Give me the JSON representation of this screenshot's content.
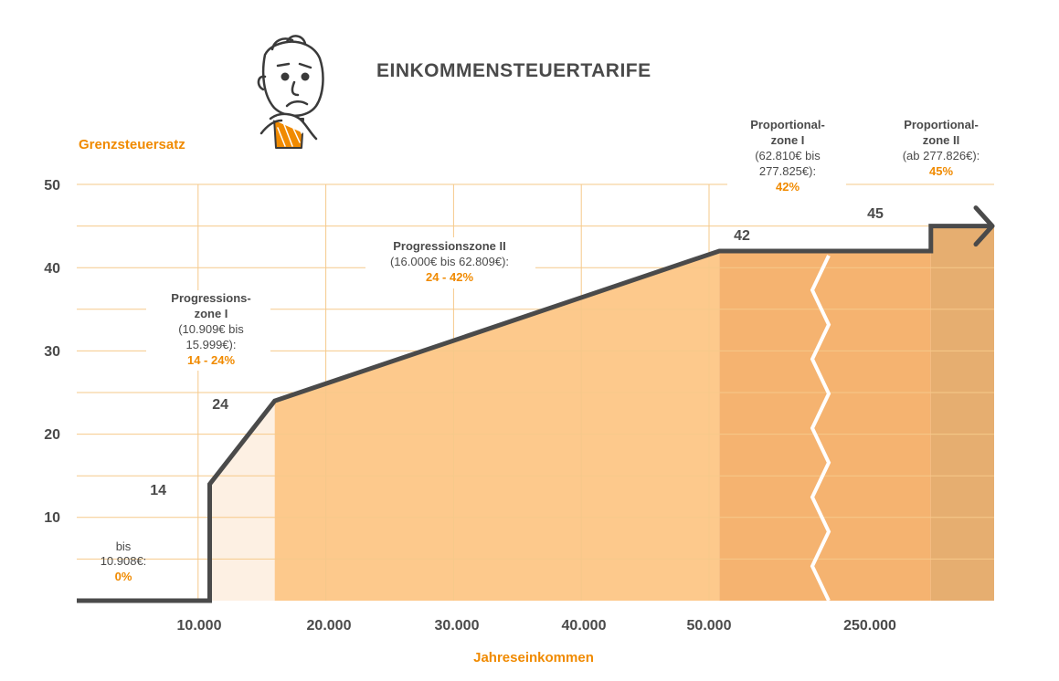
{
  "title": "EINKOMMENSTEUERTARIFE",
  "colors": {
    "accent": "#f08a00",
    "line": "#4a4a4a",
    "grid": "#f6c98a",
    "text": "#4a4a4a",
    "fill_free": "#fdf0e3",
    "fill_progression": "#fdc98c",
    "fill_prop1": "#f5b370",
    "fill_prop2": "#e6ae70",
    "break": "#ffffff"
  },
  "chart_data": {
    "type": "area",
    "title": "EINKOMMENSTEUERTARIFE",
    "ylabel": "Grenzsteuersatz",
    "xlabel": "Jahreseinkommen",
    "ylim": [
      0,
      50
    ],
    "yticks": [
      10,
      20,
      30,
      40,
      50
    ],
    "grid": true,
    "x_tick_labels": [
      "10.000",
      "20.000",
      "30.000",
      "40.000",
      "50.000",
      "250.000"
    ],
    "axis_break": "between 50.000 and 250.000",
    "step_points": [
      {
        "x": 10908,
        "y": 0
      },
      {
        "x": 10909,
        "y": 14
      },
      {
        "x": 16000,
        "y": 24
      },
      {
        "x": 62809,
        "y": 42
      },
      {
        "x": 277825,
        "y": 42
      },
      {
        "x": 277826,
        "y": 45
      }
    ],
    "point_labels": [
      "14",
      "24",
      "42",
      "45"
    ],
    "zones": [
      {
        "lines": [
          "bis",
          "10.908€:"
        ],
        "rate": "0%"
      },
      {
        "heading": [
          "Progressions-",
          "zone I"
        ],
        "lines": [
          "(10.909€ bis",
          "15.999€):"
        ],
        "rate": "14 - 24%"
      },
      {
        "heading": [
          "Progressionszone II"
        ],
        "lines": [
          "(16.000€ bis 62.809€):"
        ],
        "rate": "24 - 42%"
      },
      {
        "heading": [
          "Proportional-",
          "zone I"
        ],
        "lines": [
          "(62.810€ bis",
          "277.825€):"
        ],
        "rate": "42%"
      },
      {
        "heading": [
          "Proportional-",
          "zone II"
        ],
        "lines": [
          "(ab 277.826€):"
        ],
        "rate": "45%"
      }
    ]
  }
}
